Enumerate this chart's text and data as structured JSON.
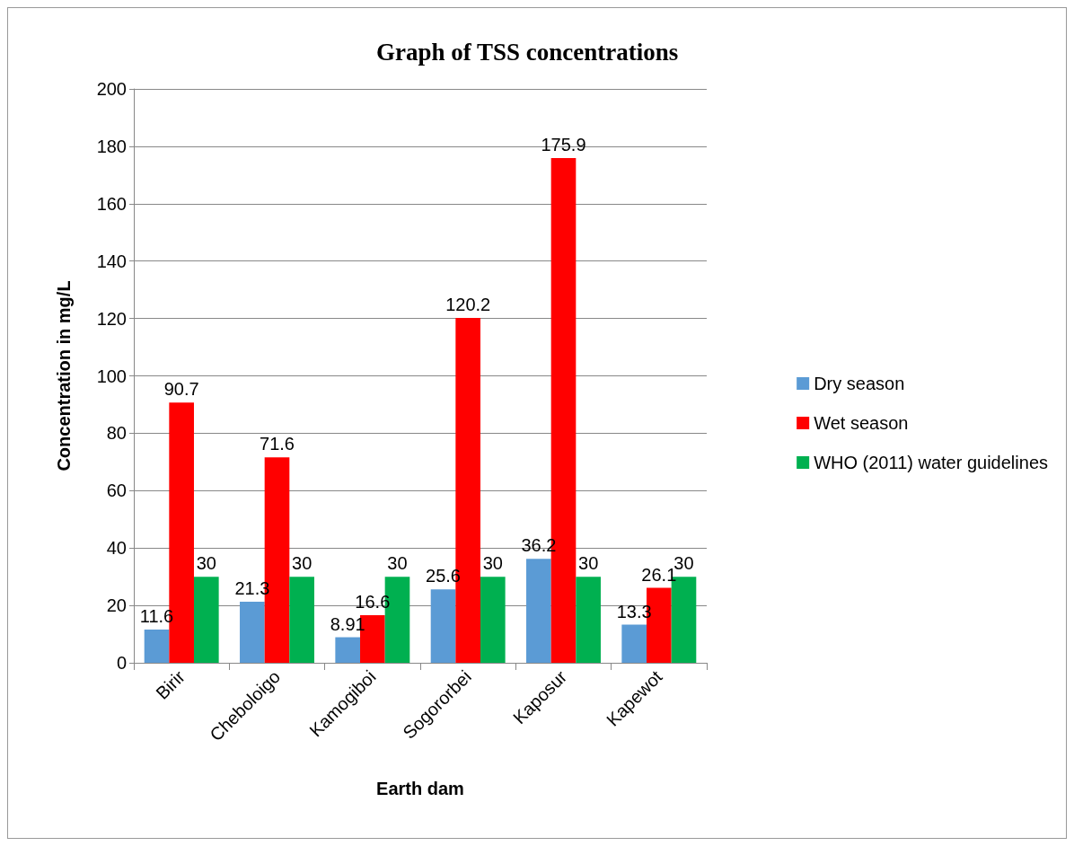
{
  "chart_data": {
    "type": "bar",
    "title": "Graph of TSS concentrations",
    "xlabel": "Earth dam",
    "ylabel": "Concentration in mg/L",
    "categories": [
      "Birir",
      "Cheboloigo",
      "Kamogiboi",
      "Sogororbei",
      "Kaposur",
      "Kapewot"
    ],
    "series": [
      {
        "name": "Dry season",
        "color": "#5b9bd5",
        "values": [
          11.6,
          21.3,
          8.91,
          25.6,
          36.2,
          13.3
        ]
      },
      {
        "name": "Wet season",
        "color": "#ff0000",
        "values": [
          90.7,
          71.6,
          16.6,
          120.2,
          175.9,
          26.1
        ]
      },
      {
        "name": "WHO (2011) water guidelines",
        "color": "#00b050",
        "values": [
          30,
          30,
          30,
          30,
          30,
          30
        ]
      }
    ],
    "ylim": [
      0,
      200
    ],
    "yticks": [
      0,
      20,
      40,
      60,
      80,
      100,
      120,
      140,
      160,
      180,
      200
    ],
    "grid": "y",
    "legend": "right",
    "data_labels": true
  }
}
